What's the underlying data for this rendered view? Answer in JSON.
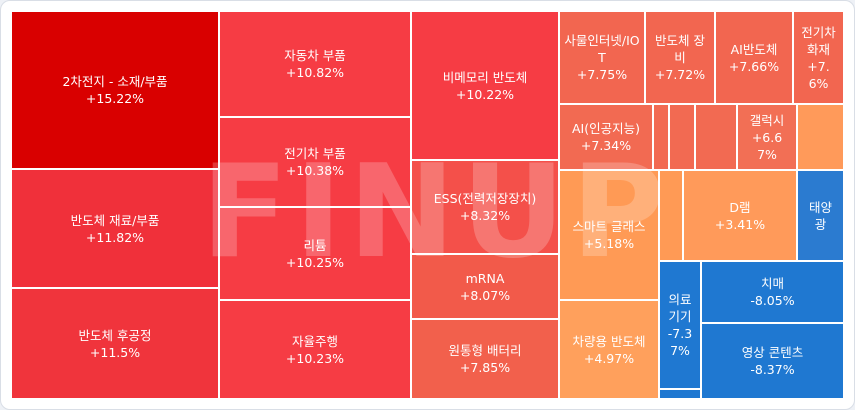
{
  "watermark": "FINUP",
  "chart_data": {
    "type": "treemap",
    "unit": "%",
    "tiles": [
      {
        "name": "2차전지 - 소재/부품",
        "change": "+15.22%",
        "value": 15.22,
        "color": "#d90000"
      },
      {
        "name": "반도체 재료/부품",
        "change": "+11.82%",
        "value": 11.82,
        "color": "#f0303a"
      },
      {
        "name": "반도체 후공정",
        "change": "+11.5%",
        "value": 11.5,
        "color": "#f0343c"
      },
      {
        "name": "자동차 부품",
        "change": "+10.82%",
        "value": 10.82,
        "color": "#f63c44"
      },
      {
        "name": "전기차 부품",
        "change": "+10.38%",
        "value": 10.38,
        "color": "#f63c44"
      },
      {
        "name": "리튬",
        "change": "+10.25%",
        "value": 10.25,
        "color": "#f63c44"
      },
      {
        "name": "자율주행",
        "change": "+10.23%",
        "value": 10.23,
        "color": "#f63c44"
      },
      {
        "name": "비메모리 반도체",
        "change": "+10.22%",
        "value": 10.22,
        "color": "#f63c44"
      },
      {
        "name": "ESS(전력저장장치)",
        "change": "+8.32%",
        "value": 8.32,
        "color": "#f4504a"
      },
      {
        "name": "mRNA",
        "change": "+8.07%",
        "value": 8.07,
        "color": "#f25a4a"
      },
      {
        "name": "원통형 배터리",
        "change": "+7.85%",
        "value": 7.85,
        "color": "#f2604c"
      },
      {
        "name": "사물인터넷/IOT",
        "change": "+7.75%",
        "value": 7.75,
        "color": "#f26650"
      },
      {
        "name": "반도체 장비",
        "change": "+7.72%",
        "value": 7.72,
        "color": "#f26650"
      },
      {
        "name": "AI반도체",
        "change": "+7.66%",
        "value": 7.66,
        "color": "#f26650"
      },
      {
        "name": "전기차 화재",
        "change": "+7.6%",
        "value": 7.6,
        "color": "#f26650"
      },
      {
        "name": "AI(인공지능)",
        "change": "+7.34%",
        "value": 7.34,
        "color": "#f26a52"
      },
      {
        "name": "",
        "change": "",
        "value": null,
        "color": "#f26a52"
      },
      {
        "name": "",
        "change": "",
        "value": null,
        "color": "#f26a52"
      },
      {
        "name": "",
        "change": "",
        "value": null,
        "color": "#f26a52"
      },
      {
        "name": "갤럭시",
        "change": "+6.67%",
        "value": 6.67,
        "color": "#f26f55"
      },
      {
        "name": "",
        "change": "",
        "value": null,
        "color": "#ff9a5a"
      },
      {
        "name": "스마트 글래스",
        "change": "+5.18%",
        "value": 5.18,
        "color": "#ff9a55"
      },
      {
        "name": "",
        "change": "",
        "value": null,
        "color": "#ff9a55"
      },
      {
        "name": "D램",
        "change": "+3.41%",
        "value": 3.41,
        "color": "#ff9a5a"
      },
      {
        "name": "태양광",
        "change": "",
        "value": null,
        "color": "#2b7bd0"
      },
      {
        "name": "차량용 반도체",
        "change": "+4.97%",
        "value": 4.97,
        "color": "#ffa05c"
      },
      {
        "name": "의료기기",
        "change": "-7.37%",
        "value": -7.37,
        "color": "#1f78d1"
      },
      {
        "name": "",
        "change": "",
        "value": null,
        "color": "#1f78d1"
      },
      {
        "name": "치매",
        "change": "-8.05%",
        "value": -8.05,
        "color": "#1f78d1"
      },
      {
        "name": "영상 콘텐츠",
        "change": "-8.37%",
        "value": -8.37,
        "color": "#1f78d1"
      }
    ]
  }
}
